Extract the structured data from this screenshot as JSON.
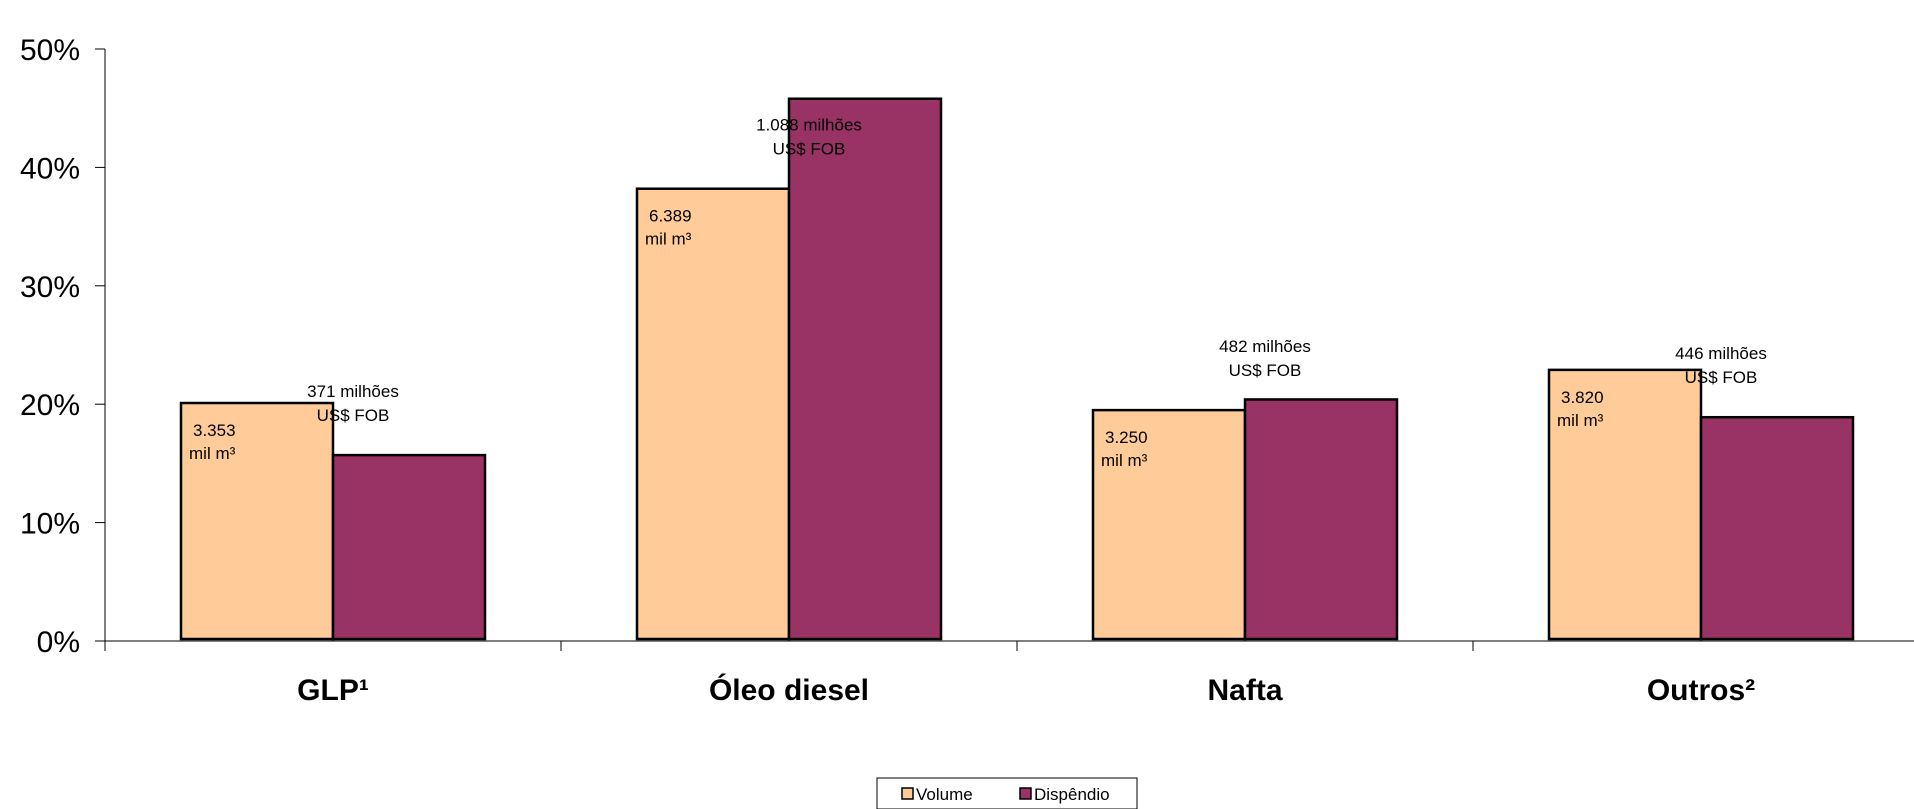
{
  "chart_data": {
    "type": "bar",
    "categories": [
      "GLP¹",
      "Óleo diesel",
      "Nafta",
      "Outros²"
    ],
    "series": [
      {
        "name": "Volume",
        "values": [
          20.1,
          38.2,
          19.5,
          22.9
        ],
        "color": "#FFCC99"
      },
      {
        "name": "Dispêndio",
        "values": [
          15.7,
          45.8,
          20.4,
          18.9
        ],
        "color": "#993366"
      }
    ],
    "ylim": [
      0,
      50
    ],
    "yticks": [
      "0%",
      "10%",
      "20%",
      "30%",
      "40%",
      "50%"
    ],
    "volume_labels": [
      [
        "3.353",
        "mil m³"
      ],
      [
        "6.389",
        "mil m³"
      ],
      [
        "3.250",
        "mil m³"
      ],
      [
        "3.820",
        "mil m³"
      ]
    ],
    "spending_labels": [
      [
        "371 milhões",
        "US$ FOB"
      ],
      [
        "1.088 milhões",
        "US$ FOB"
      ],
      [
        "482 milhões",
        "US$ FOB"
      ],
      [
        "446 milhões",
        "US$ FOB"
      ]
    ],
    "legend": [
      "Volume",
      "Dispêndio"
    ],
    "legend_position": "bottom-center",
    "grid": false
  }
}
